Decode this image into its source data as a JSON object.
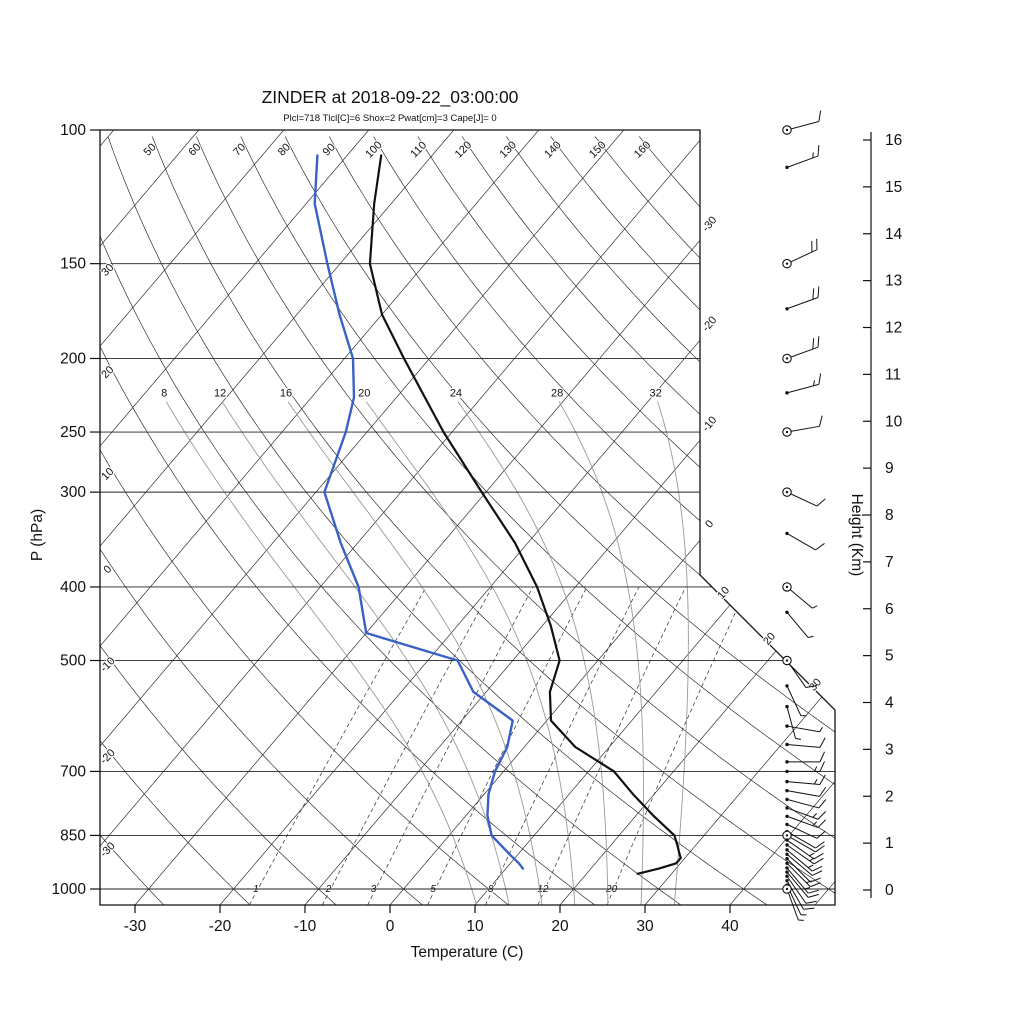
{
  "title": "ZINDER at 2018-09-22_03:00:00",
  "subtitle": "Plcl=718 Tlcl[C]=6 Shox=2 Pwat[cm]=3 Cape[J]= 0",
  "colors": {
    "temperature_curve": "#111111",
    "dewpoint_curve": "#3A62C4",
    "subtitle": "#B03A21",
    "moist_adiabat": "#999999",
    "background_line": "#222222",
    "axis": "#111111"
  },
  "axes": {
    "pressure_label": "P (hPa)",
    "temperature_label": "Temperature (C)",
    "height_label": "Height (Km)"
  },
  "chart_data": {
    "type": "line",
    "variant": "skew-t-log-p-sounding",
    "station": "ZINDER",
    "timestamp": "2018-09-22_03:00:00",
    "indices": {
      "Plcl_hPa": 718,
      "Tlcl_C": 6,
      "Showalter": 2,
      "Pwat_cm": 3,
      "Cape_J": 0
    },
    "pressure_axis": {
      "scale": "log",
      "range_hPa": [
        100,
        1050
      ],
      "ticks": [
        100,
        150,
        200,
        250,
        300,
        400,
        500,
        700,
        850,
        1000
      ]
    },
    "temperature_axis": {
      "ticks_C": [
        -30,
        -20,
        -10,
        0,
        10,
        20,
        30,
        40
      ],
      "skew": "45deg"
    },
    "height_axis": {
      "ticks_km": [
        0,
        1,
        2,
        3,
        4,
        5,
        6,
        7,
        8,
        9,
        10,
        11,
        12,
        13,
        14,
        15,
        16
      ]
    },
    "background": {
      "isotherm_step_C": 10,
      "isotherm_edge_labels_C": [
        -30,
        -20,
        -10,
        0,
        10,
        20,
        30
      ],
      "dry_adiabat_range_C": [
        -30,
        160
      ],
      "dry_adiabat_step_C": 10,
      "moist_adiabat_labels_C": [
        8,
        12,
        16,
        20,
        24,
        28,
        32
      ],
      "mixing_ratio_labels_g_kg": [
        1,
        2,
        3,
        5,
        8,
        12,
        20
      ]
    },
    "series": [
      {
        "name": "temperature",
        "color": "#111111",
        "points_p_hPa_T_C": [
          [
            955,
            26.0
          ],
          [
            940,
            28.0
          ],
          [
            925,
            29.5
          ],
          [
            910,
            29.5
          ],
          [
            900,
            29.0
          ],
          [
            875,
            27.8
          ],
          [
            850,
            26.5
          ],
          [
            800,
            22.0
          ],
          [
            750,
            17.5
          ],
          [
            700,
            13.0
          ],
          [
            650,
            6.0
          ],
          [
            600,
            0.5
          ],
          [
            550,
            -2.5
          ],
          [
            500,
            -4.5
          ],
          [
            450,
            -9.0
          ],
          [
            400,
            -14.5
          ],
          [
            350,
            -21.5
          ],
          [
            300,
            -30.5
          ],
          [
            250,
            -41.0
          ],
          [
            200,
            -53.0
          ],
          [
            175,
            -60.0
          ],
          [
            150,
            -66.5
          ],
          [
            125,
            -72.0
          ],
          [
            108,
            -76.0
          ]
        ]
      },
      {
        "name": "dewpoint",
        "color": "#3A62C4",
        "points_p_hPa_T_C": [
          [
            940,
            12.0
          ],
          [
            925,
            11.0
          ],
          [
            900,
            9.0
          ],
          [
            850,
            5.0
          ],
          [
            800,
            2.5
          ],
          [
            750,
            0.5
          ],
          [
            700,
            -1.0
          ],
          [
            650,
            -2.0
          ],
          [
            600,
            -4.0
          ],
          [
            550,
            -11.5
          ],
          [
            500,
            -16.5
          ],
          [
            460,
            -30.0
          ],
          [
            400,
            -35.5
          ],
          [
            350,
            -42.0
          ],
          [
            300,
            -49.0
          ],
          [
            250,
            -52.5
          ],
          [
            225,
            -55.0
          ],
          [
            200,
            -59.0
          ],
          [
            175,
            -65.0
          ],
          [
            150,
            -71.5
          ],
          [
            125,
            -79.0
          ],
          [
            108,
            -83.5
          ]
        ]
      }
    ],
    "wind_barbs": [
      [
        100,
        10,
        75,
        1
      ],
      [
        112,
        15,
        70,
        0
      ],
      [
        150,
        20,
        65,
        1
      ],
      [
        172,
        20,
        70,
        0
      ],
      [
        200,
        20,
        70,
        1
      ],
      [
        222,
        15,
        75,
        0
      ],
      [
        250,
        10,
        80,
        1
      ],
      [
        300,
        10,
        115,
        1
      ],
      [
        340,
        10,
        120,
        0
      ],
      [
        400,
        5,
        130,
        1
      ],
      [
        432,
        5,
        140,
        0
      ],
      [
        500,
        10,
        145,
        1
      ],
      [
        540,
        5,
        155,
        0
      ],
      [
        575,
        5,
        165,
        0
      ],
      [
        610,
        5,
        100,
        0
      ],
      [
        645,
        10,
        95,
        0
      ],
      [
        680,
        10,
        90,
        0
      ],
      [
        700,
        15,
        90,
        0
      ],
      [
        722,
        15,
        95,
        0
      ],
      [
        742,
        10,
        100,
        0
      ],
      [
        762,
        10,
        105,
        0
      ],
      [
        782,
        15,
        110,
        0
      ],
      [
        802,
        15,
        110,
        0
      ],
      [
        822,
        10,
        115,
        0
      ],
      [
        840,
        10,
        120,
        0
      ],
      [
        850,
        10,
        120,
        1
      ],
      [
        862,
        15,
        125,
        0
      ],
      [
        875,
        15,
        125,
        0
      ],
      [
        888,
        15,
        130,
        0
      ],
      [
        900,
        10,
        130,
        0
      ],
      [
        912,
        10,
        135,
        0
      ],
      [
        925,
        15,
        135,
        0
      ],
      [
        938,
        15,
        140,
        0
      ],
      [
        950,
        10,
        140,
        0
      ],
      [
        962,
        10,
        145,
        0
      ],
      [
        975,
        10,
        150,
        0
      ],
      [
        988,
        5,
        155,
        0
      ],
      [
        1000,
        5,
        160,
        1
      ]
    ]
  }
}
